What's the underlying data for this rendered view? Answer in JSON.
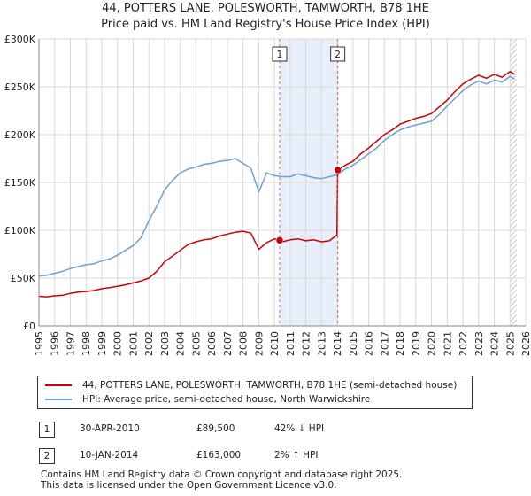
{
  "chart_data": {
    "type": "line",
    "title": "44, POTTERS LANE, POLESWORTH, TAMWORTH, B78 1HE",
    "subtitle": "Price paid vs. HM Land Registry's House Price Index (HPI)",
    "xlim": [
      1995,
      2026
    ],
    "ylim": [
      0,
      300000
    ],
    "yticks": [
      0,
      50000,
      100000,
      150000,
      200000,
      250000,
      300000
    ],
    "ytick_labels": [
      "£0",
      "£50K",
      "£100K",
      "£150K",
      "£200K",
      "£250K",
      "£300K"
    ],
    "xticks": [
      1995,
      1996,
      1997,
      1998,
      1999,
      2000,
      2001,
      2002,
      2003,
      2004,
      2005,
      2006,
      2007,
      2008,
      2009,
      2010,
      2011,
      2012,
      2013,
      2014,
      2015,
      2016,
      2017,
      2018,
      2019,
      2020,
      2021,
      2022,
      2023,
      2024,
      2025,
      2026
    ],
    "grid": true,
    "series": [
      {
        "name": "44, POTTERS LANE, POLESWORTH, TAMWORTH, B78 1HE (semi-detached house)",
        "color": "#cc0000",
        "x": [
          1995.0,
          1995.5,
          1996.0,
          1996.5,
          1997.0,
          1997.5,
          1998.0,
          1998.5,
          1999.0,
          1999.5,
          2000.0,
          2000.5,
          2001.0,
          2001.5,
          2002.0,
          2002.5,
          2003.0,
          2003.5,
          2004.0,
          2004.5,
          2005.0,
          2005.5,
          2006.0,
          2006.5,
          2007.0,
          2007.5,
          2008.0,
          2008.5,
          2009.0,
          2009.5,
          2010.0,
          2010.33,
          2010.5,
          2011.0,
          2011.5,
          2012.0,
          2012.5,
          2013.0,
          2013.5,
          2013.98,
          2014.03,
          2014.5,
          2015.0,
          2015.5,
          2016.0,
          2016.5,
          2017.0,
          2017.5,
          2018.0,
          2018.5,
          2019.0,
          2019.5,
          2020.0,
          2020.5,
          2021.0,
          2021.5,
          2022.0,
          2022.5,
          2023.0,
          2023.5,
          2024.0,
          2024.5,
          2025.0,
          2025.3
        ],
        "values": [
          31000,
          30500,
          31500,
          32000,
          34000,
          35500,
          36000,
          37000,
          39000,
          40000,
          41500,
          43000,
          45000,
          47000,
          50000,
          57000,
          67000,
          73000,
          79000,
          85000,
          88000,
          90000,
          91000,
          94000,
          96000,
          98000,
          99000,
          97000,
          80000,
          87000,
          91000,
          89500,
          88000,
          90000,
          91000,
          89000,
          90000,
          88000,
          89000,
          95000,
          163000,
          168000,
          172000,
          180000,
          186000,
          193000,
          200000,
          205000,
          211000,
          214000,
          217000,
          219000,
          222000,
          229000,
          236000,
          245000,
          253000,
          258000,
          262000,
          259000,
          263000,
          260000,
          266000,
          263000
        ]
      },
      {
        "name": "HPI: Average price, semi-detached house, North Warwickshire",
        "color": "#6f9fd8",
        "x": [
          1995.0,
          1995.5,
          1996.0,
          1996.5,
          1997.0,
          1997.5,
          1998.0,
          1998.5,
          1999.0,
          1999.5,
          2000.0,
          2000.5,
          2001.0,
          2001.5,
          2002.0,
          2002.5,
          2003.0,
          2003.5,
          2004.0,
          2004.5,
          2005.0,
          2005.5,
          2006.0,
          2006.5,
          2007.0,
          2007.5,
          2008.0,
          2008.5,
          2009.0,
          2009.5,
          2010.0,
          2010.5,
          2011.0,
          2011.5,
          2012.0,
          2012.5,
          2013.0,
          2013.5,
          2014.0,
          2014.5,
          2015.0,
          2015.5,
          2016.0,
          2016.5,
          2017.0,
          2017.5,
          2018.0,
          2018.5,
          2019.0,
          2019.5,
          2020.0,
          2020.5,
          2021.0,
          2021.5,
          2022.0,
          2022.5,
          2023.0,
          2023.5,
          2024.0,
          2024.5,
          2025.0,
          2025.3
        ],
        "values": [
          52000,
          53000,
          55000,
          57000,
          60000,
          62000,
          64000,
          65000,
          68000,
          70000,
          74000,
          79000,
          84000,
          92000,
          110000,
          125000,
          142000,
          152000,
          160000,
          164000,
          166000,
          169000,
          170000,
          172000,
          173000,
          175000,
          170000,
          165000,
          140000,
          160000,
          157000,
          156000,
          156000,
          159000,
          157000,
          155000,
          154000,
          156000,
          158000,
          164000,
          168000,
          174000,
          180000,
          186000,
          194000,
          200000,
          205000,
          208000,
          210000,
          212000,
          214000,
          221000,
          230000,
          238000,
          246000,
          252000,
          256000,
          253000,
          257000,
          255000,
          261000,
          258000
        ]
      }
    ],
    "sales": [
      {
        "n": "1",
        "x": 2010.33,
        "value": 89500
      },
      {
        "n": "2",
        "x": 2014.03,
        "value": 163000
      }
    ],
    "shaded_region": [
      2010.33,
      2014.03
    ],
    "forecast_hatch_start": 2025.0
  },
  "legend": {
    "item1": "44, POTTERS LANE, POLESWORTH, TAMWORTH, B78 1HE (semi-detached house)",
    "item2": "HPI: Average price, semi-detached house, North Warwickshire",
    "color1": "#cc0000",
    "color2": "#6f9fd8"
  },
  "sales_table": [
    {
      "n": "1",
      "date": "30-APR-2010",
      "price": "£89,500",
      "hpi": "42% ↓ HPI"
    },
    {
      "n": "2",
      "date": "10-JAN-2014",
      "price": "£163,000",
      "hpi": "2% ↑ HPI"
    }
  ],
  "footer": {
    "line1": "Contains HM Land Registry data © Crown copyright and database right 2025.",
    "line2": "This data is licensed under the Open Government Licence v3.0."
  }
}
